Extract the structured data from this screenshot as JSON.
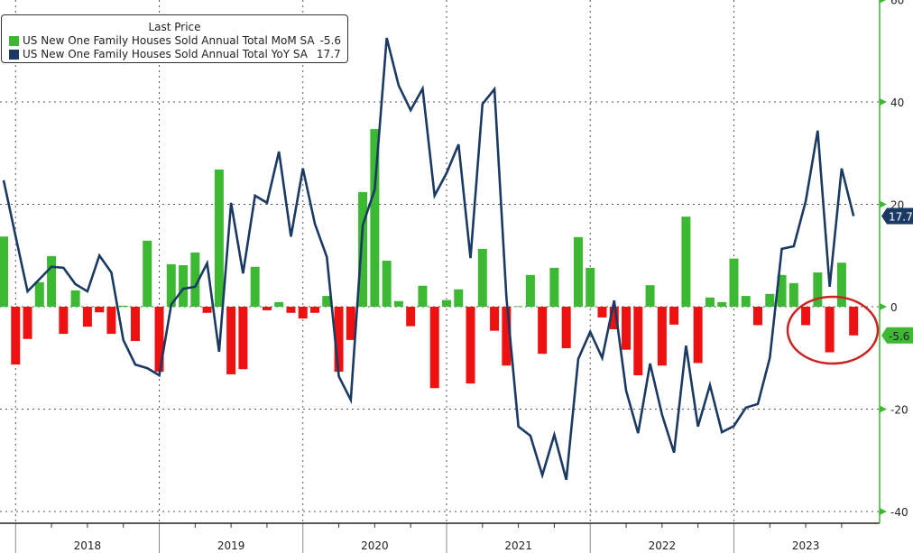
{
  "chart_data": {
    "type": "bar+line",
    "title": "",
    "legend_title": "Last Price",
    "legend_placement": "top-left",
    "x_start": "2017-11",
    "x_end": "2023-10",
    "frequency": "monthly",
    "year_labels": [
      "2018",
      "2019",
      "2020",
      "2021",
      "2022",
      "2023"
    ],
    "y_ticks": [
      "60",
      "40",
      "20",
      "0",
      "-20",
      "-40"
    ],
    "ylim": [
      -40,
      60
    ],
    "y_axis_side": "right",
    "grid": true,
    "series": [
      {
        "name": "US New One Family Houses Sold Annual Total MoM SA",
        "type": "bar",
        "last": "-5.6",
        "color_pos": "#3cb832",
        "color_neg": "#ee1111",
        "values": [
          13.7,
          -11.3,
          -6.3,
          4.8,
          9.9,
          -5.3,
          3.2,
          -3.9,
          -1.1,
          -5.3,
          0.2,
          -6.7,
          12.9,
          -12.7,
          8.3,
          8.1,
          10.6,
          -1.2,
          26.8,
          -13.2,
          -12.2,
          7.8,
          -0.7,
          0.9,
          -1.2,
          -2.3,
          -1.2,
          2.1,
          -12.7,
          -6.5,
          22.4,
          34.7,
          9.0,
          1.1,
          -3.8,
          4.1,
          -15.9,
          1.3,
          3.4,
          -15.0,
          11.3,
          -4.7,
          -11.5,
          0.1,
          6.2,
          -9.2,
          7.6,
          -8.1,
          13.6,
          7.6,
          -2.1,
          -4.4,
          -8.4,
          -13.4,
          4.2,
          -11.5,
          -3.5,
          17.6,
          -11.0,
          1.8,
          0.9,
          9.4,
          2.1,
          -3.6,
          2.5,
          6.2,
          4.6,
          -3.6,
          6.7,
          -8.9,
          8.6,
          -5.6
        ]
      },
      {
        "name": "US New One Family Houses Sold Annual Total YoY SA",
        "type": "line",
        "last": "17.7",
        "color": "#1b3a63",
        "values": [
          24.7,
          13.8,
          3.0,
          5.4,
          7.8,
          7.6,
          4.4,
          3.0,
          10.0,
          6.7,
          -6.5,
          -11.3,
          -12.0,
          -13.4,
          0.4,
          3.5,
          3.9,
          8.5,
          -8.8,
          20.3,
          6.5,
          21.7,
          20.3,
          30.3,
          13.7,
          27.0,
          16.2,
          9.7,
          -13.6,
          -18.2,
          15.9,
          22.9,
          52.5,
          43.2,
          38.4,
          42.6,
          21.7,
          26.1,
          31.7,
          9.5,
          39.6,
          42.5,
          1.8,
          -23.4,
          -25.2,
          -32.9,
          -25.0,
          -33.8,
          -10.2,
          -4.9,
          -10.0,
          1.2,
          -16.4,
          -24.7,
          -11.1,
          -21.1,
          -28.5,
          -7.6,
          -23.4,
          -15.3,
          -24.5,
          -23.3,
          -19.7,
          -19.0,
          -10.0,
          11.3,
          11.8,
          20.6,
          34.4,
          3.9,
          27.0,
          17.7
        ]
      }
    ],
    "annotation": "red ellipse around last three months of 2023 MoM bars",
    "annotation_color": "#cc2222",
    "axis_color": "#3cb832"
  }
}
